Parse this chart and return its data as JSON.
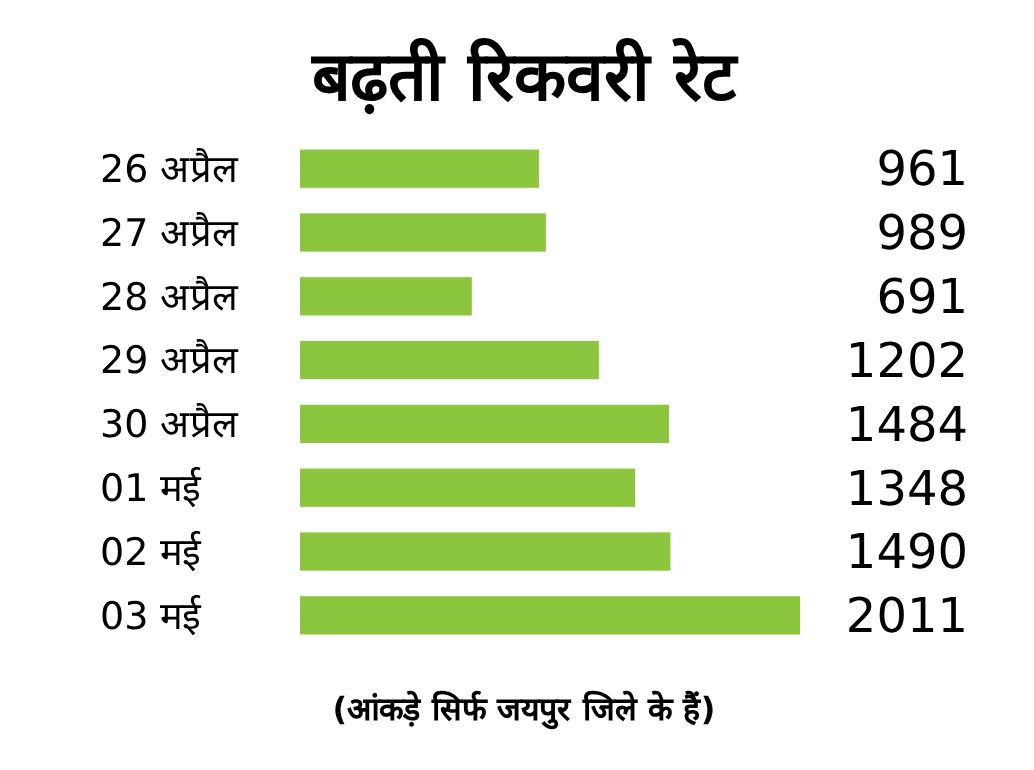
{
  "chart_data": {
    "type": "bar",
    "orientation": "horizontal",
    "title": "बढ़ती रिकवरी रेट",
    "categories": [
      "26 अप्रैल",
      "27 अप्रैल",
      "28 अप्रैल",
      "29 अप्रैल",
      "30 अप्रैल",
      "01 मई",
      "02 मई",
      "03 मई"
    ],
    "values": [
      961,
      989,
      691,
      1202,
      1484,
      1348,
      1490,
      2011
    ],
    "color": "#8cc63f",
    "data_labels": true,
    "annotations": [
      "(आंकड़े सिर्फ जयपुर जिले के हैं)"
    ]
  }
}
